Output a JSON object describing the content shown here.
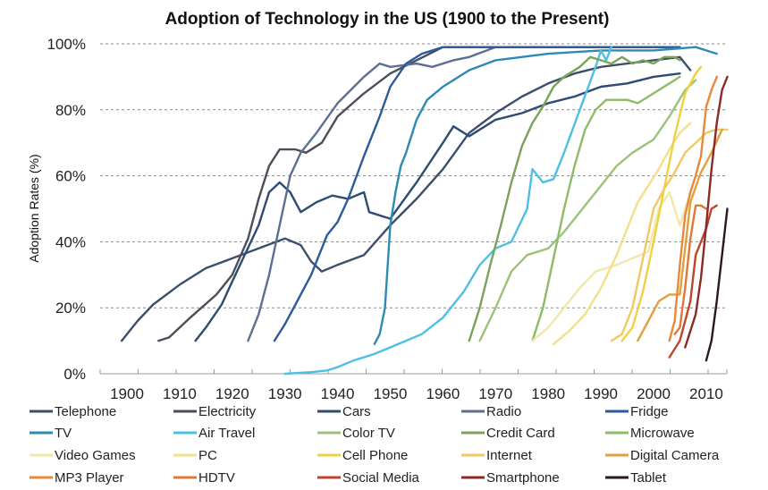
{
  "chart_data": {
    "type": "line",
    "title": "Adoption of Technology in the US (1900 to the Present)",
    "xlabel": "",
    "ylabel": "Adoption Rates (%)",
    "xlim": [
      1895,
      2014
    ],
    "ylim": [
      0,
      100
    ],
    "x_ticks": [
      "1900",
      "1910",
      "1920",
      "1930",
      "1940",
      "1950",
      "1960",
      "1970",
      "1980",
      "1990",
      "2000",
      "2010"
    ],
    "y_ticks": [
      "0%",
      "20%",
      "40%",
      "60%",
      "80%",
      "100%"
    ],
    "grid": true,
    "legend_position": "bottom",
    "series": [
      {
        "name": "Telephone",
        "color": "#3b4f6b",
        "points": [
          [
            1899,
            10
          ],
          [
            1902,
            16
          ],
          [
            1905,
            21
          ],
          [
            1910,
            27
          ],
          [
            1915,
            32
          ],
          [
            1920,
            35
          ],
          [
            1925,
            38
          ],
          [
            1930,
            41
          ],
          [
            1933,
            39
          ],
          [
            1935,
            34
          ],
          [
            1937,
            31
          ],
          [
            1940,
            33
          ],
          [
            1945,
            36
          ],
          [
            1950,
            45
          ],
          [
            1955,
            53
          ],
          [
            1960,
            62
          ],
          [
            1965,
            73
          ],
          [
            1970,
            79
          ],
          [
            1975,
            84
          ],
          [
            1980,
            88
          ],
          [
            1985,
            91
          ],
          [
            1990,
            93
          ],
          [
            1995,
            94
          ],
          [
            2000,
            95
          ],
          [
            2005,
            96
          ],
          [
            2007,
            92
          ]
        ]
      },
      {
        "name": "Electricity",
        "color": "#4a4e5a",
        "points": [
          [
            1906,
            10
          ],
          [
            1908,
            11
          ],
          [
            1912,
            17
          ],
          [
            1917,
            24
          ],
          [
            1920,
            30
          ],
          [
            1923,
            41
          ],
          [
            1925,
            53
          ],
          [
            1927,
            63
          ],
          [
            1929,
            68
          ],
          [
            1932,
            68
          ],
          [
            1934,
            67
          ],
          [
            1937,
            70
          ],
          [
            1940,
            78
          ],
          [
            1945,
            85
          ],
          [
            1950,
            91
          ],
          [
            1955,
            95
          ],
          [
            1960,
            99
          ],
          [
            2005,
            99
          ]
        ]
      },
      {
        "name": "Cars",
        "color": "#2e4b72",
        "points": [
          [
            1913,
            10
          ],
          [
            1915,
            14
          ],
          [
            1918,
            21
          ],
          [
            1920,
            28
          ],
          [
            1925,
            45
          ],
          [
            1927,
            55
          ],
          [
            1929,
            58
          ],
          [
            1931,
            55
          ],
          [
            1933,
            49
          ],
          [
            1936,
            52
          ],
          [
            1939,
            54
          ],
          [
            1942,
            53
          ],
          [
            1945,
            55
          ],
          [
            1946,
            49
          ],
          [
            1950,
            47
          ],
          [
            1955,
            58
          ],
          [
            1960,
            70
          ],
          [
            1962,
            75
          ],
          [
            1965,
            72
          ],
          [
            1970,
            77
          ],
          [
            1975,
            79
          ],
          [
            1980,
            82
          ],
          [
            1985,
            84
          ],
          [
            1990,
            87
          ],
          [
            1995,
            88
          ],
          [
            2000,
            90
          ],
          [
            2005,
            91
          ]
        ]
      },
      {
        "name": "Radio",
        "color": "#5b7090",
        "points": [
          [
            1923,
            10
          ],
          [
            1925,
            18
          ],
          [
            1927,
            30
          ],
          [
            1929,
            45
          ],
          [
            1931,
            60
          ],
          [
            1933,
            67
          ],
          [
            1936,
            73
          ],
          [
            1940,
            82
          ],
          [
            1945,
            90
          ],
          [
            1948,
            94
          ],
          [
            1950,
            93
          ],
          [
            1955,
            94
          ],
          [
            1958,
            93
          ],
          [
            1962,
            95
          ],
          [
            1965,
            96
          ],
          [
            1970,
            99
          ],
          [
            2005,
            99
          ]
        ]
      },
      {
        "name": "Fridge",
        "color": "#2c5a9a",
        "points": [
          [
            1928,
            10
          ],
          [
            1930,
            15
          ],
          [
            1932,
            21
          ],
          [
            1935,
            30
          ],
          [
            1938,
            42
          ],
          [
            1940,
            46
          ],
          [
            1942,
            53
          ],
          [
            1945,
            66
          ],
          [
            1948,
            78
          ],
          [
            1950,
            87
          ],
          [
            1953,
            94
          ],
          [
            1956,
            97
          ],
          [
            1960,
            99
          ],
          [
            2005,
            99
          ]
        ]
      },
      {
        "name": "TV",
        "color": "#2d8ab5",
        "points": [
          [
            1947,
            9
          ],
          [
            1948,
            12
          ],
          [
            1949,
            20
          ],
          [
            1950,
            45
          ],
          [
            1951,
            55
          ],
          [
            1952,
            63
          ],
          [
            1953,
            67
          ],
          [
            1955,
            77
          ],
          [
            1957,
            83
          ],
          [
            1960,
            87
          ],
          [
            1965,
            92
          ],
          [
            1970,
            95
          ],
          [
            1980,
            97
          ],
          [
            1990,
            98
          ],
          [
            2000,
            98
          ],
          [
            2008,
            99
          ],
          [
            2010,
            98
          ],
          [
            2012,
            97
          ]
        ]
      },
      {
        "name": "Air Travel",
        "color": "#4ebfe4",
        "points": [
          [
            1930,
            0
          ],
          [
            1935,
            0.5
          ],
          [
            1938,
            1
          ],
          [
            1940,
            2
          ],
          [
            1943,
            4
          ],
          [
            1947,
            6
          ],
          [
            1950,
            8
          ],
          [
            1953,
            10
          ],
          [
            1956,
            12
          ],
          [
            1960,
            17
          ],
          [
            1964,
            25
          ],
          [
            1967,
            33
          ],
          [
            1970,
            38
          ],
          [
            1973,
            40
          ],
          [
            1976,
            50
          ],
          [
            1977,
            62
          ],
          [
            1979,
            58
          ],
          [
            1981,
            59
          ],
          [
            1983,
            67
          ],
          [
            1986,
            80
          ],
          [
            1989,
            93
          ],
          [
            1990,
            98
          ],
          [
            1991,
            95
          ],
          [
            1992,
            99
          ]
        ]
      },
      {
        "name": "Color TV",
        "color": "#9bc27a",
        "points": [
          [
            1967,
            10
          ],
          [
            1970,
            20
          ],
          [
            1973,
            31
          ],
          [
            1976,
            36
          ],
          [
            1980,
            38
          ],
          [
            1983,
            43
          ],
          [
            1986,
            49
          ],
          [
            1990,
            57
          ],
          [
            1993,
            63
          ],
          [
            1996,
            67
          ],
          [
            2000,
            71
          ],
          [
            2003,
            78
          ],
          [
            2006,
            86
          ],
          [
            2008,
            89
          ]
        ]
      },
      {
        "name": "Credit Card",
        "color": "#7aa35a",
        "points": [
          [
            1965,
            10
          ],
          [
            1967,
            20
          ],
          [
            1969,
            33
          ],
          [
            1971,
            45
          ],
          [
            1973,
            58
          ],
          [
            1975,
            69
          ],
          [
            1977,
            76
          ],
          [
            1979,
            81
          ],
          [
            1981,
            87
          ],
          [
            1983,
            90
          ],
          [
            1986,
            93
          ],
          [
            1988,
            96
          ],
          [
            1990,
            95
          ],
          [
            1992,
            94
          ],
          [
            1994,
            96
          ],
          [
            1996,
            94
          ],
          [
            1998,
            95
          ],
          [
            2000,
            94
          ],
          [
            2002,
            96
          ],
          [
            2004,
            96
          ],
          [
            2005,
            95
          ]
        ]
      },
      {
        "name": "Microwave",
        "color": "#8dbb66",
        "points": [
          [
            1977,
            10
          ],
          [
            1979,
            20
          ],
          [
            1981,
            35
          ],
          [
            1983,
            50
          ],
          [
            1985,
            63
          ],
          [
            1987,
            74
          ],
          [
            1989,
            80
          ],
          [
            1991,
            83
          ],
          [
            1995,
            83
          ],
          [
            1997,
            82
          ],
          [
            2000,
            85
          ],
          [
            2003,
            88
          ],
          [
            2005,
            90
          ]
        ]
      },
      {
        "name": "Video Games",
        "color": "#f0e8a8",
        "points": [
          [
            1977,
            10
          ],
          [
            1980,
            14
          ],
          [
            1983,
            20
          ],
          [
            1986,
            26
          ],
          [
            1989,
            31
          ],
          [
            1993,
            33
          ],
          [
            1996,
            35
          ],
          [
            1999,
            37
          ],
          [
            2001,
            50
          ],
          [
            2003,
            55
          ],
          [
            2005,
            45
          ],
          [
            2007,
            55
          ]
        ]
      },
      {
        "name": "PC",
        "color": "#f2e08a",
        "points": [
          [
            1981,
            9
          ],
          [
            1984,
            13
          ],
          [
            1987,
            18
          ],
          [
            1990,
            26
          ],
          [
            1993,
            36
          ],
          [
            1995,
            44
          ],
          [
            1997,
            52
          ],
          [
            1999,
            57
          ],
          [
            2001,
            62
          ],
          [
            2003,
            68
          ],
          [
            2005,
            73
          ],
          [
            2007,
            76
          ]
        ]
      },
      {
        "name": "Cell Phone",
        "color": "#f0d040",
        "points": [
          [
            1994,
            10
          ],
          [
            1996,
            14
          ],
          [
            1998,
            25
          ],
          [
            2000,
            40
          ],
          [
            2002,
            56
          ],
          [
            2004,
            72
          ],
          [
            2006,
            85
          ],
          [
            2008,
            91
          ],
          [
            2009,
            93
          ]
        ]
      },
      {
        "name": "Internet",
        "color": "#f2c862",
        "points": [
          [
            1992,
            10
          ],
          [
            1994,
            12
          ],
          [
            1996,
            20
          ],
          [
            1998,
            35
          ],
          [
            2000,
            50
          ],
          [
            2002,
            56
          ],
          [
            2004,
            61
          ],
          [
            2006,
            67
          ],
          [
            2008,
            70
          ],
          [
            2010,
            73
          ],
          [
            2012,
            74
          ],
          [
            2014,
            74
          ]
        ]
      },
      {
        "name": "Digital Camera",
        "color": "#e0a040",
        "points": [
          [
            1997,
            10
          ],
          [
            1999,
            16
          ],
          [
            2001,
            22
          ],
          [
            2003,
            24
          ],
          [
            2005,
            24
          ],
          [
            2006,
            38
          ],
          [
            2007,
            52
          ],
          [
            2009,
            61
          ],
          [
            2011,
            67
          ],
          [
            2013,
            74
          ]
        ]
      },
      {
        "name": "MP3 Player",
        "color": "#e8883a",
        "points": [
          [
            2003,
            10
          ],
          [
            2004,
            16
          ],
          [
            2005,
            33
          ],
          [
            2006,
            48
          ],
          [
            2007,
            55
          ],
          [
            2008,
            60
          ],
          [
            2009,
            66
          ],
          [
            2010,
            81
          ],
          [
            2011,
            86
          ],
          [
            2012,
            90
          ]
        ]
      },
      {
        "name": "HDTV",
        "color": "#e07838",
        "points": [
          [
            2004,
            12
          ],
          [
            2005,
            14
          ],
          [
            2006,
            26
          ],
          [
            2007,
            41
          ],
          [
            2008,
            51
          ],
          [
            2009,
            51
          ],
          [
            2010,
            50
          ]
        ]
      },
      {
        "name": "Social Media",
        "color": "#c0452e",
        "points": [
          [
            2003,
            5
          ],
          [
            2005,
            10
          ],
          [
            2007,
            22
          ],
          [
            2008,
            36
          ],
          [
            2009,
            40
          ],
          [
            2010,
            44
          ],
          [
            2011,
            50
          ],
          [
            2012,
            51
          ]
        ]
      },
      {
        "name": "Smartphone",
        "color": "#8c2a28",
        "points": [
          [
            2006,
            8
          ],
          [
            2008,
            18
          ],
          [
            2009,
            29
          ],
          [
            2010,
            45
          ],
          [
            2011,
            62
          ],
          [
            2012,
            76
          ],
          [
            2013,
            86
          ],
          [
            2014,
            90
          ]
        ]
      },
      {
        "name": "Tablet",
        "color": "#2a1a1a",
        "points": [
          [
            2010,
            4
          ],
          [
            2011,
            10
          ],
          [
            2012,
            22
          ],
          [
            2013,
            36
          ],
          [
            2014,
            50
          ]
        ]
      }
    ]
  }
}
